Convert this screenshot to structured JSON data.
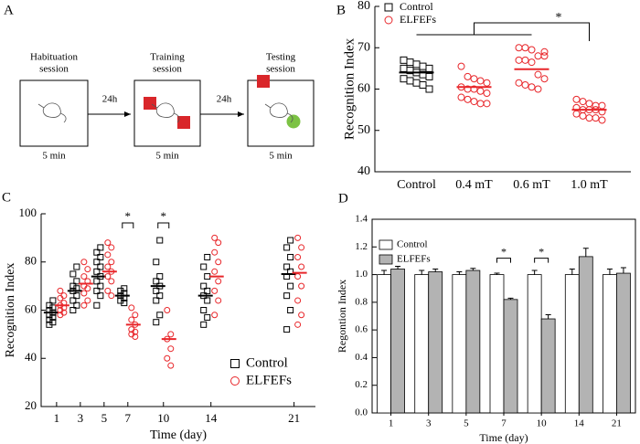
{
  "diagram": {
    "panel": "A",
    "sessions": [
      {
        "title": [
          "Habituation",
          "session"
        ],
        "duration": "5 min"
      },
      {
        "title": [
          "Training",
          "session"
        ],
        "duration": "5 min"
      },
      {
        "title": [
          "Testing",
          "session"
        ],
        "duration": "5 min"
      }
    ],
    "intervals": [
      "24h",
      "24h"
    ]
  },
  "chart_data": [
    {
      "panel": "B",
      "type": "dotplot",
      "categories": [
        "Control",
        "0.4 mT",
        "0.6 mT",
        "1.0 mT"
      ],
      "ylim": [
        40,
        80
      ],
      "yticks": [
        40,
        50,
        60,
        70,
        80
      ],
      "ylabel": "Recognition Index",
      "legend": "upper left",
      "series": [
        {
          "name": "Control",
          "color": "#000000",
          "marker": "square",
          "points": [
            [
              67,
              66.5,
              66,
              65.5,
              65,
              65,
              64.5,
              64,
              63.5,
              63,
              62.5,
              62,
              61.5,
              61,
              60
            ],
            null,
            null,
            null
          ],
          "means": [
            64,
            null,
            null,
            null
          ]
        },
        {
          "name": "ELFEFs",
          "color": "#e8262a",
          "marker": "circle",
          "points": [
            null,
            [
              65.5,
              63,
              62.5,
              62,
              61.5,
              60.5,
              60,
              60,
              59.5,
              59,
              58,
              57.5,
              57,
              56.5,
              56.5
            ],
            [
              70,
              70,
              69.5,
              68,
              68,
              67,
              67,
              66.5,
              63.5,
              62.5,
              61.5,
              61,
              60.5,
              60,
              69
            ],
            [
              57.5,
              57,
              56.5,
              56,
              56,
              55.5,
              55,
              55,
              55,
              54.5,
              54,
              53.5,
              53,
              53,
              52.5
            ]
          ],
          "means": [
            null,
            60.5,
            64.8,
            55
          ]
        }
      ],
      "annotations": [
        "*"
      ]
    },
    {
      "panel": "C",
      "type": "dotplot",
      "x": [
        1,
        3,
        5,
        7,
        10,
        14,
        21
      ],
      "xlim": [
        -0.3,
        22.8
      ],
      "xticks": [
        1,
        3,
        5,
        7,
        10,
        14,
        21
      ],
      "ylim": [
        20,
        100
      ],
      "yticks": [
        20,
        40,
        60,
        80,
        100
      ],
      "xlabel": "Time (day)",
      "ylabel": "Recognition Index",
      "legend": "lower right",
      "series": [
        {
          "name": "Control",
          "color": "#000000",
          "marker": "square",
          "points": [
            [
              64,
              62,
              61,
              60,
              59,
              58,
              57,
              56,
              55,
              54
            ],
            [
              78,
              75,
              72,
              70,
              69,
              68,
              66,
              64,
              62,
              60
            ],
            [
              86,
              84,
              82,
              80,
              78,
              76,
              74,
              72,
              70,
              68,
              66,
              62
            ],
            [
              69,
              68,
              67,
              66,
              65,
              64,
              63
            ],
            [
              89,
              80,
              74,
              72,
              70,
              68,
              66,
              64,
              58,
              55
            ],
            [
              82,
              78,
              74,
              70,
              68,
              66,
              64,
              60,
              57,
              54
            ],
            [
              89,
              86,
              82,
              78,
              76,
              74,
              70,
              66,
              60,
              52
            ]
          ],
          "means": [
            59,
            68,
            74,
            66,
            70,
            66,
            75
          ]
        },
        {
          "name": "ELFEFs",
          "color": "#e8262a",
          "marker": "circle",
          "points": [
            [
              68,
              66,
              65,
              63,
              62,
              61,
              60,
              59,
              58
            ],
            [
              80,
              77,
              74,
              72,
              70,
              69,
              67,
              64,
              62
            ],
            [
              88,
              86,
              83,
              80,
              78,
              76,
              74,
              72,
              68,
              66
            ],
            [
              61,
              58,
              56,
              54,
              52,
              51,
              50,
              49
            ],
            [
              60,
              50,
              48,
              44,
              40,
              37
            ],
            [
              90,
              88,
              84,
              80,
              76,
              72,
              68,
              64,
              58
            ],
            [
              90,
              86,
              82,
              78,
              74,
              70,
              64,
              58,
              54
            ]
          ],
          "means": [
            62,
            71,
            76,
            54,
            48,
            74,
            75.5
          ]
        }
      ],
      "annotations": [
        {
          "x": 7,
          "label": "*"
        },
        {
          "x": 10,
          "label": "*"
        }
      ]
    },
    {
      "panel": "D",
      "type": "bar",
      "categories": [
        "1",
        "3",
        "5",
        "7",
        "10",
        "14",
        "21"
      ],
      "ylim": [
        0,
        1.4
      ],
      "yticks": [
        {
          "value": 0,
          "label": "0.0"
        },
        0.2,
        0.4,
        0.6,
        0.8,
        {
          "value": 1,
          "label": "1.0"
        },
        1.2,
        1.4
      ],
      "xlabel": "Time (day)",
      "ylabel": "Regontion Index",
      "legend": "upper left",
      "series": [
        {
          "name": "Control",
          "color": "#ffffff",
          "values": [
            1,
            1,
            1,
            1,
            1,
            1,
            1
          ],
          "errors": [
            0.03,
            0.03,
            0.02,
            0.01,
            0.03,
            0.04,
            0.04
          ]
        },
        {
          "name": "ELFEFs",
          "color": "#b3b3b3",
          "values": [
            1.04,
            1.02,
            1.03,
            0.82,
            0.68,
            1.13,
            1.01
          ],
          "errors": [
            0.02,
            0.02,
            0.015,
            0.01,
            0.03,
            0.06,
            0.04
          ]
        }
      ],
      "annotations": [
        {
          "category": "7",
          "label": "*"
        },
        {
          "category": "10",
          "label": "*"
        }
      ]
    }
  ]
}
